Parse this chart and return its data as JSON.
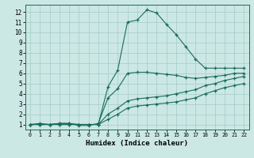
{
  "xlabel": "Humidex (Indice chaleur)",
  "xlim": [
    -0.5,
    22.5
  ],
  "ylim": [
    0.5,
    12.7
  ],
  "xticks": [
    0,
    1,
    2,
    3,
    4,
    5,
    6,
    7,
    8,
    9,
    10,
    11,
    12,
    13,
    14,
    15,
    16,
    17,
    18,
    19,
    20,
    21,
    22
  ],
  "yticks": [
    1,
    2,
    3,
    4,
    5,
    6,
    7,
    8,
    9,
    10,
    11,
    12
  ],
  "bg_color": "#cce8e4",
  "grid_color": "#aacfcb",
  "line_color": "#1a6b5a",
  "curve1_x": [
    0,
    1,
    2,
    3,
    4,
    5,
    6,
    7,
    8,
    9,
    10,
    11,
    12,
    13,
    14,
    15,
    16,
    17,
    18,
    19,
    20,
    21,
    22
  ],
  "curve1_y": [
    1.0,
    1.1,
    1.0,
    1.1,
    1.1,
    1.0,
    1.0,
    1.0,
    4.7,
    6.3,
    11.0,
    11.2,
    12.2,
    11.9,
    10.8,
    9.8,
    8.6,
    7.4,
    6.5,
    6.5,
    6.5,
    6.5,
    6.5
  ],
  "curve2_x": [
    0,
    1,
    2,
    3,
    4,
    5,
    6,
    7,
    8,
    9,
    10,
    11,
    12,
    13,
    14,
    15,
    16,
    17,
    18,
    19,
    20,
    21,
    22
  ],
  "curve2_y": [
    1.0,
    1.0,
    1.0,
    1.1,
    1.1,
    0.9,
    0.9,
    1.1,
    3.6,
    4.5,
    6.0,
    6.1,
    6.1,
    6.0,
    5.9,
    5.8,
    5.6,
    5.5,
    5.6,
    5.7,
    5.8,
    6.0,
    6.0
  ],
  "curve3_x": [
    0,
    1,
    2,
    3,
    4,
    5,
    6,
    7,
    8,
    9,
    10,
    11,
    12,
    13,
    14,
    15,
    16,
    17,
    18,
    19,
    20,
    21,
    22
  ],
  "curve3_y": [
    1.0,
    1.0,
    1.0,
    1.0,
    1.0,
    1.0,
    1.0,
    1.0,
    2.0,
    2.6,
    3.3,
    3.5,
    3.6,
    3.7,
    3.8,
    4.0,
    4.2,
    4.4,
    4.8,
    5.0,
    5.3,
    5.5,
    5.7
  ],
  "curve4_x": [
    0,
    1,
    2,
    3,
    4,
    5,
    6,
    7,
    8,
    9,
    10,
    11,
    12,
    13,
    14,
    15,
    16,
    17,
    18,
    19,
    20,
    21,
    22
  ],
  "curve4_y": [
    1.0,
    1.0,
    1.0,
    1.0,
    1.0,
    1.0,
    1.0,
    1.0,
    1.5,
    2.0,
    2.6,
    2.8,
    2.9,
    3.0,
    3.1,
    3.2,
    3.4,
    3.6,
    4.0,
    4.3,
    4.6,
    4.8,
    5.0
  ]
}
